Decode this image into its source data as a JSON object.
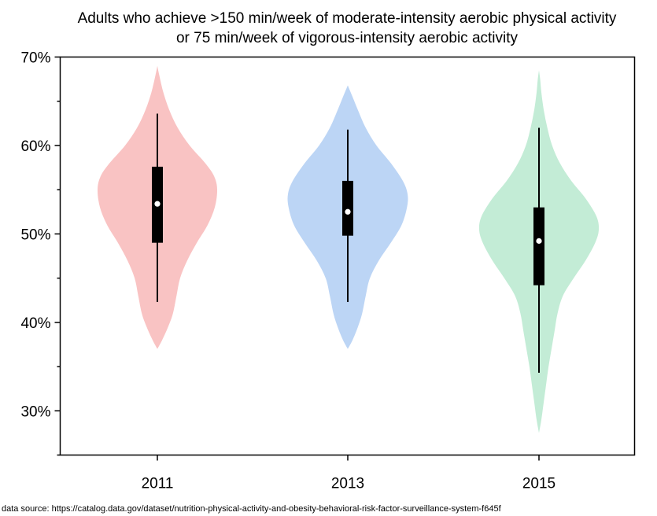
{
  "chart_data": {
    "type": "violin",
    "title_lines": [
      "Adults who achieve >150 min/week of moderate-intensity aerobic physical activity",
      "or 75 min/week of vigorous-intensity aerobic activity"
    ],
    "xlabel": "",
    "ylabel": "",
    "categories": [
      "2011",
      "2013",
      "2015"
    ],
    "ylim": [
      0.25,
      0.7
    ],
    "y_ticks": [
      {
        "value": 0.3,
        "label": "30%"
      },
      {
        "value": 0.4,
        "label": "40%"
      },
      {
        "value": 0.5,
        "label": "50%"
      },
      {
        "value": 0.6,
        "label": "60%"
      },
      {
        "value": 0.7,
        "label": "70%"
      }
    ],
    "grid": false,
    "series": [
      {
        "category": "2011",
        "color": "#f9c3c3",
        "median": 0.534,
        "q1": 0.49,
        "q3": 0.576,
        "whisker_low": 0.423,
        "whisker_high": 0.636,
        "profile": [
          [
            0.37,
            0.0
          ],
          [
            0.38,
            0.08
          ],
          [
            0.395,
            0.18
          ],
          [
            0.41,
            0.26
          ],
          [
            0.43,
            0.32
          ],
          [
            0.45,
            0.38
          ],
          [
            0.47,
            0.5
          ],
          [
            0.49,
            0.66
          ],
          [
            0.51,
            0.84
          ],
          [
            0.53,
            0.96
          ],
          [
            0.55,
            1.0
          ],
          [
            0.565,
            0.95
          ],
          [
            0.58,
            0.8
          ],
          [
            0.6,
            0.54
          ],
          [
            0.62,
            0.34
          ],
          [
            0.64,
            0.2
          ],
          [
            0.66,
            0.1
          ],
          [
            0.68,
            0.03
          ],
          [
            0.69,
            0.0
          ]
        ]
      },
      {
        "category": "2013",
        "color": "#bcd5f5",
        "median": 0.525,
        "q1": 0.498,
        "q3": 0.56,
        "whisker_low": 0.423,
        "whisker_high": 0.618,
        "profile": [
          [
            0.37,
            0.0
          ],
          [
            0.38,
            0.08
          ],
          [
            0.395,
            0.17
          ],
          [
            0.41,
            0.24
          ],
          [
            0.43,
            0.3
          ],
          [
            0.45,
            0.37
          ],
          [
            0.47,
            0.52
          ],
          [
            0.49,
            0.72
          ],
          [
            0.51,
            0.9
          ],
          [
            0.53,
            0.99
          ],
          [
            0.545,
            1.0
          ],
          [
            0.56,
            0.92
          ],
          [
            0.58,
            0.72
          ],
          [
            0.6,
            0.48
          ],
          [
            0.62,
            0.3
          ],
          [
            0.64,
            0.17
          ],
          [
            0.655,
            0.08
          ],
          [
            0.668,
            0.0
          ]
        ]
      },
      {
        "category": "2015",
        "color": "#c3ecd6",
        "median": 0.492,
        "q1": 0.442,
        "q3": 0.53,
        "whisker_low": 0.343,
        "whisker_high": 0.62,
        "profile": [
          [
            0.275,
            0.0
          ],
          [
            0.29,
            0.04
          ],
          [
            0.31,
            0.08
          ],
          [
            0.33,
            0.12
          ],
          [
            0.35,
            0.16
          ],
          [
            0.37,
            0.21
          ],
          [
            0.39,
            0.26
          ],
          [
            0.41,
            0.31
          ],
          [
            0.43,
            0.4
          ],
          [
            0.45,
            0.58
          ],
          [
            0.47,
            0.78
          ],
          [
            0.49,
            0.94
          ],
          [
            0.505,
            1.0
          ],
          [
            0.52,
            0.96
          ],
          [
            0.54,
            0.78
          ],
          [
            0.56,
            0.54
          ],
          [
            0.58,
            0.35
          ],
          [
            0.6,
            0.22
          ],
          [
            0.62,
            0.14
          ],
          [
            0.64,
            0.08
          ],
          [
            0.66,
            0.04
          ],
          [
            0.675,
            0.02
          ],
          [
            0.685,
            0.0
          ]
        ]
      }
    ]
  },
  "footer": {
    "source_text": "data source: https://catalog.data.gov/dataset/nutrition-physical-activity-and-obesity-behavioral-risk-factor-surveillance-system-f645f"
  }
}
